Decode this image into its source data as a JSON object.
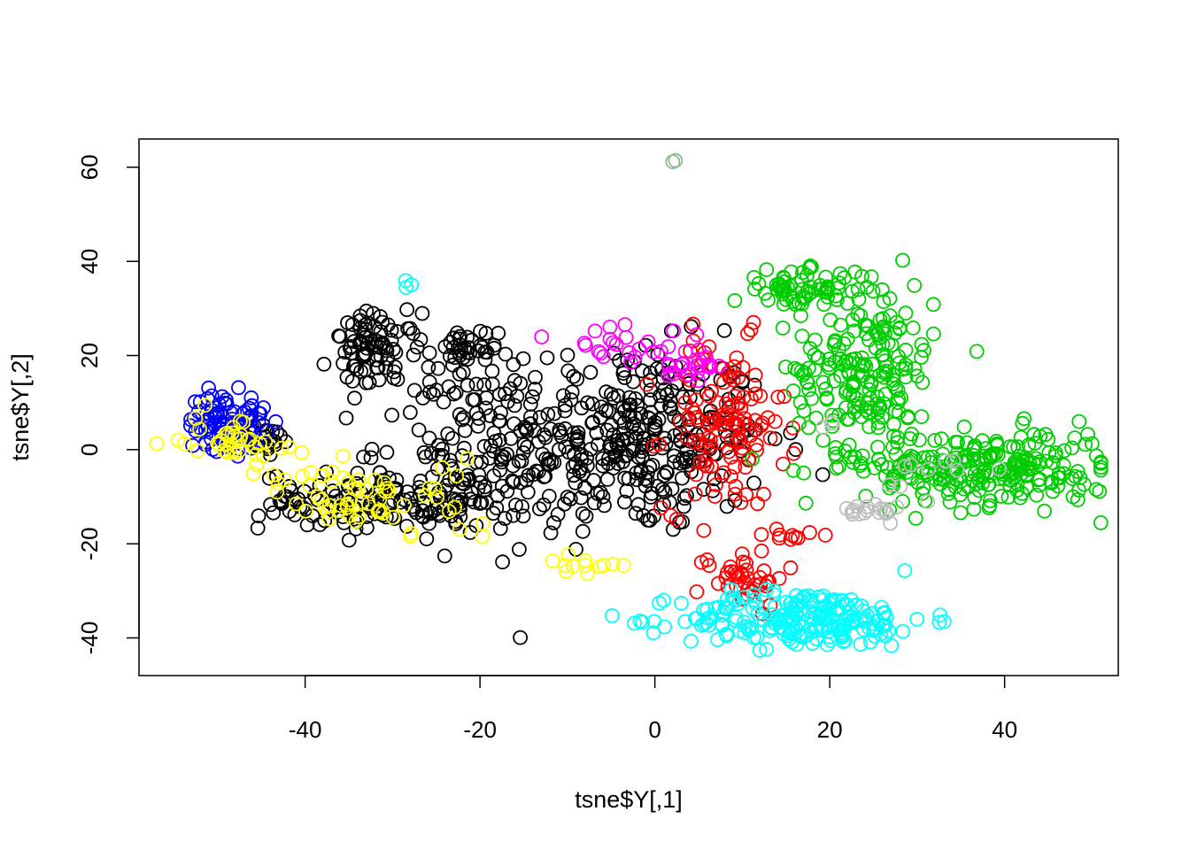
{
  "chart_data": {
    "type": "scatter",
    "title": "",
    "xlabel": "tsne$Y[,1]",
    "ylabel": "tsne$Y[,2]",
    "xlim": [
      -59,
      53
    ],
    "ylim": [
      -48,
      66
    ],
    "x_ticks": [
      -40,
      -20,
      0,
      20,
      40
    ],
    "y_ticks": [
      -40,
      -20,
      0,
      20,
      40,
      60
    ],
    "x_tick_labels": [
      "-40",
      "-20",
      "0",
      "20",
      "40"
    ],
    "y_tick_labels": [
      "-40",
      "-20",
      "0",
      "20",
      "40",
      "60"
    ],
    "grid": false,
    "legend": "none",
    "marker": "open-circle",
    "clusters": [
      {
        "color": "#000000",
        "n": 340,
        "cx": -3,
        "cy": 2,
        "sx": 8,
        "sy": 10
      },
      {
        "color": "#000000",
        "n": 90,
        "cx": -22,
        "cy": 2,
        "sx": 5,
        "sy": 9
      },
      {
        "color": "#000000",
        "n": 80,
        "cx": -32,
        "cy": 21,
        "sx": 2.5,
        "sy": 4
      },
      {
        "color": "#000000",
        "n": 90,
        "cx": -35,
        "cy": -11,
        "sx": 5,
        "sy": 3
      },
      {
        "color": "#000000",
        "n": 60,
        "cx": -22,
        "cy": -11,
        "sx": 4,
        "sy": 3
      },
      {
        "color": "#000000",
        "n": 40,
        "cx": -22,
        "cy": 20,
        "sx": 2,
        "sy": 3
      },
      {
        "color": "#000000",
        "n": 20,
        "cx": -45,
        "cy": 2,
        "sx": 2,
        "sy": 2
      },
      {
        "color": "#ff0000",
        "n": 120,
        "cx": 8,
        "cy": 5,
        "sx": 3.5,
        "sy": 9
      },
      {
        "color": "#ff0000",
        "n": 40,
        "cx": 10,
        "cy": -27,
        "sx": 2.5,
        "sy": 3
      },
      {
        "color": "#ff0000",
        "n": 10,
        "cx": 16,
        "cy": -18,
        "sx": 2,
        "sy": 1
      },
      {
        "color": "#00ffff",
        "n": 220,
        "cx": 17,
        "cy": -36,
        "sx": 7,
        "sy": 3
      },
      {
        "color": "#00cd00",
        "n": 200,
        "cx": 24,
        "cy": 17,
        "sx": 4,
        "sy": 9
      },
      {
        "color": "#00cd00",
        "n": 70,
        "cx": 17,
        "cy": 34,
        "sx": 4,
        "sy": 2
      },
      {
        "color": "#00cd00",
        "n": 240,
        "cx": 38,
        "cy": -4,
        "sx": 7,
        "sy": 4
      },
      {
        "color": "#0000ff",
        "n": 90,
        "cx": -49,
        "cy": 6,
        "sx": 2.2,
        "sy": 3
      },
      {
        "color": "#ffff00",
        "n": 40,
        "cx": -48,
        "cy": 2,
        "sx": 3,
        "sy": 3
      },
      {
        "color": "#ffff00",
        "n": 45,
        "cx": -36,
        "cy": -10,
        "sx": 3.5,
        "sy": 3
      },
      {
        "color": "#ffff00",
        "n": 15,
        "cx": -24,
        "cy": -10,
        "sx": 3,
        "sy": 5
      },
      {
        "color": "#ffff00",
        "n": 12,
        "cx": -8,
        "cy": -24,
        "sx": 2,
        "sy": 1
      },
      {
        "color": "#ff00ff",
        "n": 25,
        "cx": -3,
        "cy": 22,
        "sx": 5,
        "sy": 3
      },
      {
        "color": "#ff00ff",
        "n": 20,
        "cx": 4,
        "cy": 17,
        "sx": 2,
        "sy": 2
      },
      {
        "color": "#bebebe",
        "n": 18,
        "cx": 25,
        "cy": -13,
        "sx": 1.5,
        "sy": 1
      },
      {
        "color": "#bebebe",
        "n": 10,
        "cx": 32,
        "cy": -5,
        "sx": 3,
        "sy": 3
      },
      {
        "color": "#bebebe",
        "n": 3,
        "cx": 19.8,
        "cy": 5.5,
        "sx": 0.5,
        "sy": 0.3
      },
      {
        "color": "#00ffff",
        "n": 3,
        "cx": -27.5,
        "cy": 35,
        "sx": 0.5,
        "sy": 0.5
      },
      {
        "color": "#8fbc8f",
        "n": 2,
        "cx": 2.3,
        "cy": 61,
        "sx": 0.3,
        "sy": 0.4
      }
    ]
  }
}
